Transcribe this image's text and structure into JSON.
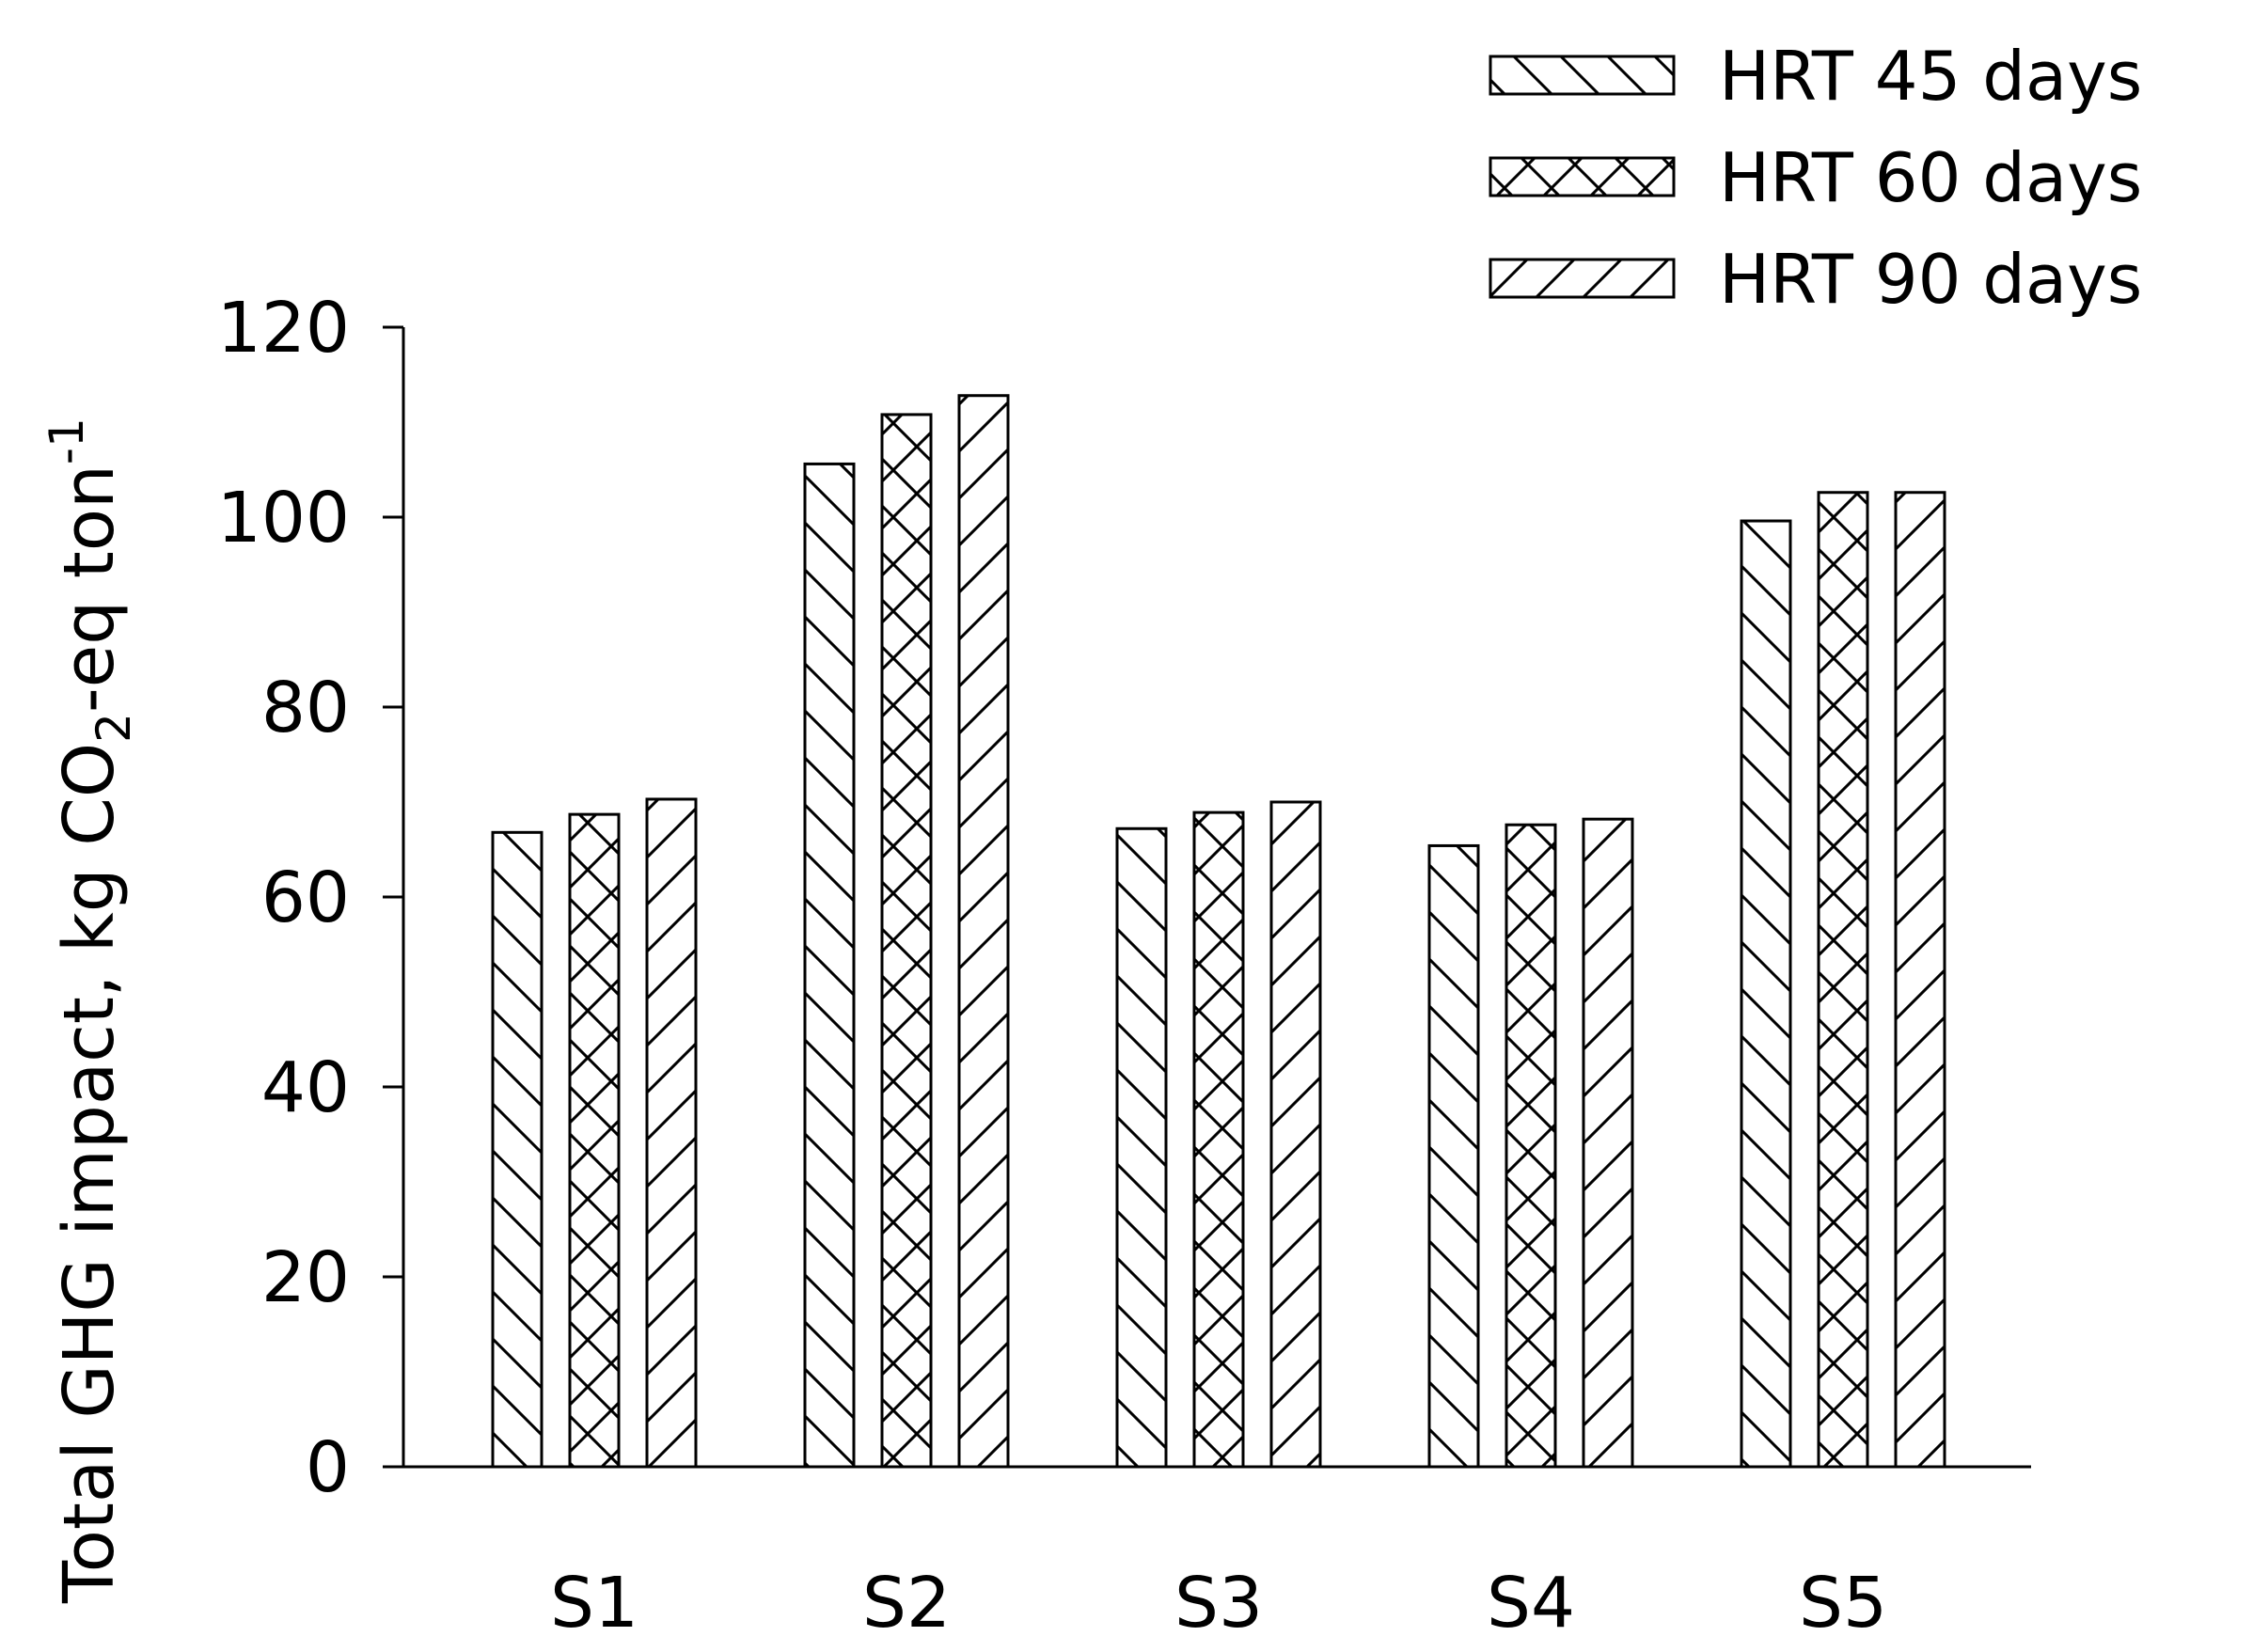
{
  "chart_data": {
    "type": "bar",
    "categories": [
      "S1",
      "S2",
      "S3",
      "S4",
      "S5"
    ],
    "series": [
      {
        "name": "HRT 45 days",
        "pattern": "hatch-back",
        "values": [
          66.8,
          105.6,
          67.2,
          65.4,
          99.6
        ]
      },
      {
        "name": "HRT 60 days",
        "pattern": "hatch-cross",
        "values": [
          68.7,
          110.8,
          68.9,
          67.6,
          102.6
        ]
      },
      {
        "name": "HRT 90 days",
        "pattern": "hatch-forward",
        "values": [
          70.3,
          112.8,
          70.0,
          68.2,
          102.6
        ]
      }
    ],
    "ylabel": {
      "main": "Total GHG impact, kg CO",
      "sub": "2",
      "mid": "-eq ton",
      "sup": "-1"
    },
    "xlabel": "",
    "ylim": [
      0,
      120
    ],
    "yticks": [
      0,
      20,
      40,
      60,
      80,
      100,
      120
    ],
    "legend_position": "top-right",
    "grid": false
  }
}
